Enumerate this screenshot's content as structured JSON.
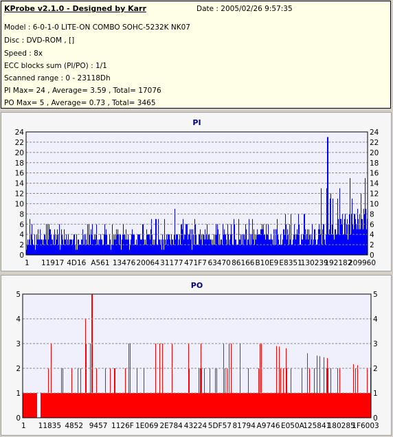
{
  "header": {
    "title": "KProbe v2.1.0 - Designed by Karr",
    "date": "Date : 2005/02/26 9:57:35",
    "lines": [
      "Model : 6-0-1-0 LITE-ON COMBO SOHC-5232K NK07",
      "Disc : DVD-ROM ,  []",
      "Speed : 8x",
      "ECC blocks sum (PI/PO) : 1/1",
      "Scanned range : 0 - 23118Dh",
      "PI Max= 24 , Average= 3.59 , Total= 17076",
      "PO Max= 5 , Average= 0.73 , Total= 3465"
    ]
  },
  "colors": {
    "background": "#d4d0c8",
    "info_bg": "#ffffe7",
    "plot_bg": "#f0f0fc",
    "pi_bar": "#0000ff",
    "po_bar": "#ff0000",
    "title": "#000080"
  },
  "chart_data": [
    {
      "type": "bar",
      "title": "PI",
      "ylim": [
        0,
        24
      ],
      "yticks": [
        0,
        2,
        4,
        6,
        8,
        10,
        12,
        14,
        16,
        18,
        20,
        22,
        24
      ],
      "xtick_labels": [
        "1",
        "11917",
        "4D16",
        "A561",
        "13476",
        "20064",
        "31177",
        "471F7",
        "63470",
        "86166",
        "B10E9",
        "E8351",
        "130239",
        "192182",
        "209960"
      ],
      "grid": "horizontal dashed",
      "summary": {
        "max": 24,
        "average": 3.59,
        "total": 17076
      },
      "profile": [
        {
          "x": 0.0,
          "base": 2.5,
          "peak": 6
        },
        {
          "x": 0.02,
          "base": 3,
          "peak": 11
        },
        {
          "x": 0.1,
          "base": 3,
          "peak": 8
        },
        {
          "x": 0.4,
          "base": 3,
          "peak": 10
        },
        {
          "x": 0.62,
          "base": 3.5,
          "peak": 10
        },
        {
          "x": 0.82,
          "base": 4,
          "peak": 13
        },
        {
          "x": 0.89,
          "base": 5,
          "peak": 24
        },
        {
          "x": 0.93,
          "base": 6,
          "peak": 16
        },
        {
          "x": 1.0,
          "base": 8,
          "peak": 16
        }
      ]
    },
    {
      "type": "bar",
      "title": "PO",
      "ylim": [
        0,
        5
      ],
      "yticks": [
        0,
        1,
        2,
        3,
        4,
        5
      ],
      "xtick_labels": [
        "1",
        "11835",
        "4852",
        "9457",
        "1126F",
        "1E069",
        "2E784",
        "43224",
        "5DF57",
        "81794",
        "A9746",
        "E050A",
        "125841",
        "180285",
        "1F6003"
      ],
      "grid": "horizontal dashed",
      "summary": {
        "max": 5,
        "average": 0.73,
        "total": 3465
      },
      "profile": [
        {
          "x": 0.0,
          "base": 1,
          "peak": 3
        },
        {
          "x": 0.2,
          "base": 1,
          "peak": 5
        },
        {
          "x": 0.4,
          "base": 1,
          "peak": 4
        },
        {
          "x": 0.7,
          "base": 1,
          "peak": 3
        },
        {
          "x": 1.0,
          "base": 1,
          "peak": 2
        }
      ]
    }
  ]
}
